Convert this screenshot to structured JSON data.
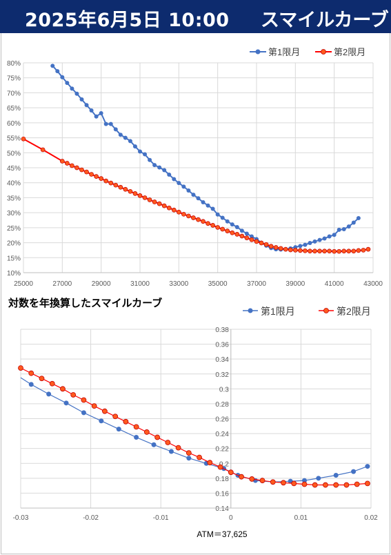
{
  "header": {
    "datetime": "2025年6月5日 10:00",
    "title": "スマイルカーブ"
  },
  "colors": {
    "header_bg": "#0d2b6e",
    "series1": "#4472c4",
    "series2": "#ff0000",
    "series2_marker": "#ff5a1f"
  },
  "chart_data": [
    {
      "type": "line",
      "title": "",
      "xlim": [
        25000,
        43000
      ],
      "ylim": [
        0.1,
        0.8
      ],
      "x_ticks": [
        "25000",
        "27000",
        "29000",
        "31000",
        "33000",
        "35000",
        "37000",
        "39000",
        "41000",
        "43000"
      ],
      "y_ticks": [
        "10%",
        "15%",
        "20%",
        "25%",
        "30%",
        "35%",
        "40%",
        "45%",
        "50%",
        "55%",
        "60%",
        "65%",
        "70%",
        "75%",
        "80%"
      ],
      "legend": "top-right",
      "grid": true,
      "series": [
        {
          "name": "第1限月",
          "x": [
            26500,
            26750,
            27000,
            27250,
            27500,
            27750,
            28000,
            28250,
            28500,
            28750,
            29000,
            29250,
            29500,
            29750,
            30000,
            30250,
            30500,
            30750,
            31000,
            31250,
            31500,
            31750,
            32000,
            32250,
            32500,
            32750,
            33000,
            33250,
            33500,
            33750,
            34000,
            34250,
            34500,
            34750,
            35000,
            35250,
            35500,
            35750,
            36000,
            36250,
            36500,
            36750,
            37000,
            37250,
            37500,
            37750,
            38000,
            38250,
            38500,
            38750,
            39000,
            39250,
            39500,
            39750,
            40000,
            40250,
            40500,
            40750,
            41000,
            41250,
            41500,
            41750,
            42000,
            42250
          ],
          "y": [
            0.79,
            0.772,
            0.752,
            0.733,
            0.714,
            0.697,
            0.678,
            0.659,
            0.641,
            0.621,
            0.632,
            0.596,
            0.596,
            0.578,
            0.56,
            0.55,
            0.539,
            0.521,
            0.504,
            0.495,
            0.476,
            0.459,
            0.451,
            0.442,
            0.427,
            0.412,
            0.399,
            0.387,
            0.374,
            0.36,
            0.348,
            0.335,
            0.324,
            0.313,
            0.294,
            0.283,
            0.271,
            0.261,
            0.252,
            0.24,
            0.23,
            0.221,
            0.212,
            0.2,
            0.19,
            0.182,
            0.178,
            0.177,
            0.178,
            0.181,
            0.185,
            0.189,
            0.193,
            0.199,
            0.204,
            0.209,
            0.214,
            0.221,
            0.226,
            0.243,
            0.245,
            0.254,
            0.267,
            0.282
          ]
        },
        {
          "name": "第2限月",
          "x": [
            25000,
            26000,
            27000,
            27250,
            27500,
            27750,
            28000,
            28250,
            28500,
            28750,
            29000,
            29250,
            29500,
            29750,
            30000,
            30250,
            30500,
            30750,
            31000,
            31250,
            31500,
            31750,
            32000,
            32250,
            32500,
            32750,
            33000,
            33250,
            33500,
            33750,
            34000,
            34250,
            34500,
            34750,
            35000,
            35250,
            35500,
            35750,
            36000,
            36250,
            36500,
            36750,
            37000,
            37250,
            37500,
            37750,
            38000,
            38250,
            38500,
            38750,
            39000,
            39250,
            39500,
            39750,
            40000,
            40250,
            40500,
            40750,
            41000,
            41250,
            41500,
            41750,
            42000,
            42250,
            42500,
            42750
          ],
          "y": [
            0.546,
            0.51,
            0.472,
            0.465,
            0.457,
            0.45,
            0.443,
            0.436,
            0.428,
            0.421,
            0.414,
            0.406,
            0.399,
            0.392,
            0.385,
            0.378,
            0.371,
            0.364,
            0.357,
            0.35,
            0.343,
            0.336,
            0.33,
            0.323,
            0.316,
            0.309,
            0.302,
            0.295,
            0.289,
            0.283,
            0.277,
            0.271,
            0.264,
            0.258,
            0.251,
            0.245,
            0.239,
            0.233,
            0.228,
            0.222,
            0.216,
            0.21,
            0.204,
            0.199,
            0.194,
            0.188,
            0.184,
            0.181,
            0.178,
            0.176,
            0.175,
            0.174,
            0.173,
            0.172,
            0.172,
            0.172,
            0.172,
            0.172,
            0.171,
            0.171,
            0.172,
            0.172,
            0.172,
            0.174,
            0.175,
            0.178
          ]
        }
      ]
    },
    {
      "type": "line",
      "title": "対数を年換算したスマイルカーブ",
      "xlim": [
        -0.03,
        0.02
      ],
      "ylim": [
        0.14,
        0.38
      ],
      "x_ticks": [
        "-0.03",
        "-0.02",
        "-0.01",
        "0",
        "0.01",
        "0.02"
      ],
      "y_ticks": [
        "0.14",
        "0.16",
        "0.18",
        "0.2",
        "0.22",
        "0.24",
        "0.26",
        "0.28",
        "0.3",
        "0.32",
        "0.34",
        "0.36",
        "0.38"
      ],
      "legend": "top-right",
      "grid": true,
      "annotation": "ATM＝37,625",
      "series": [
        {
          "name": "第1限月",
          "x": [
            -0.03,
            -0.0285,
            -0.026,
            -0.0235,
            -0.021,
            -0.0185,
            -0.016,
            -0.0135,
            -0.011,
            -0.0085,
            -0.006,
            -0.0035,
            -0.001,
            0.001,
            0.0035,
            0.006,
            0.0085,
            0.0105,
            0.0125,
            0.015,
            0.0175,
            0.0195
          ],
          "x_plot_only_markers_from": 1,
          "y": [
            0.315,
            0.306,
            0.293,
            0.281,
            0.268,
            0.257,
            0.246,
            0.235,
            0.225,
            0.216,
            0.207,
            0.2,
            0.193,
            0.184,
            0.177,
            0.175,
            0.176,
            0.177,
            0.18,
            0.184,
            0.189,
            0.196
          ]
        },
        {
          "name": "第2限月",
          "x": [
            -0.03,
            -0.0285,
            -0.027,
            -0.0255,
            -0.024,
            -0.0225,
            -0.021,
            -0.0195,
            -0.018,
            -0.0165,
            -0.015,
            -0.0135,
            -0.012,
            -0.0105,
            -0.009,
            -0.0075,
            -0.006,
            -0.0045,
            -0.003,
            -0.0015,
            0.0,
            0.0015,
            0.003,
            0.0045,
            0.006,
            0.0075,
            0.009,
            0.0105,
            0.012,
            0.0135,
            0.015,
            0.0165,
            0.018,
            0.0195
          ],
          "y": [
            0.328,
            0.321,
            0.314,
            0.307,
            0.3,
            0.292,
            0.285,
            0.277,
            0.27,
            0.263,
            0.256,
            0.249,
            0.242,
            0.235,
            0.228,
            0.221,
            0.214,
            0.208,
            0.201,
            0.195,
            0.188,
            0.182,
            0.179,
            0.177,
            0.175,
            0.174,
            0.173,
            0.172,
            0.171,
            0.171,
            0.171,
            0.171,
            0.172,
            0.173
          ]
        }
      ]
    }
  ]
}
